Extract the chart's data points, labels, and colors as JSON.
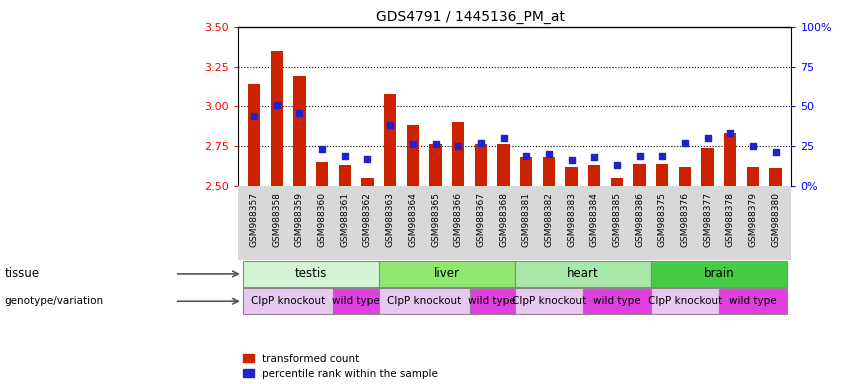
{
  "title": "GDS4791 / 1445136_PM_at",
  "samples": [
    "GSM988357",
    "GSM988358",
    "GSM988359",
    "GSM988360",
    "GSM988361",
    "GSM988362",
    "GSM988363",
    "GSM988364",
    "GSM988365",
    "GSM988366",
    "GSM988367",
    "GSM988368",
    "GSM988381",
    "GSM988382",
    "GSM988383",
    "GSM988384",
    "GSM988385",
    "GSM988386",
    "GSM988375",
    "GSM988376",
    "GSM988377",
    "GSM988378",
    "GSM988379",
    "GSM988380"
  ],
  "red_values": [
    3.14,
    3.35,
    3.19,
    2.65,
    2.63,
    2.55,
    3.08,
    2.88,
    2.76,
    2.9,
    2.76,
    2.76,
    2.68,
    2.68,
    2.62,
    2.63,
    2.55,
    2.64,
    2.64,
    2.62,
    2.74,
    2.83,
    2.62,
    2.61
  ],
  "blue_values": [
    2.94,
    3.01,
    2.96,
    2.73,
    2.69,
    2.67,
    2.88,
    2.76,
    2.76,
    2.75,
    2.77,
    2.8,
    2.69,
    2.7,
    2.66,
    2.68,
    2.63,
    2.69,
    2.69,
    2.77,
    2.8,
    2.83,
    2.75,
    2.71
  ],
  "ylim_left": [
    2.5,
    3.5
  ],
  "ylim_right": [
    0,
    100
  ],
  "yticks_left": [
    2.5,
    2.75,
    3.0,
    3.25,
    3.5
  ],
  "yticks_right": [
    0,
    25,
    50,
    75,
    100
  ],
  "ytick_labels_right": [
    "0%",
    "25",
    "50",
    "75",
    "100%"
  ],
  "hlines": [
    2.75,
    3.0,
    3.25
  ],
  "tissue_groups": [
    {
      "label": "testis",
      "start": 0,
      "end": 6,
      "color": "#d4f5d4"
    },
    {
      "label": "liver",
      "start": 6,
      "end": 12,
      "color": "#90e870"
    },
    {
      "label": "heart",
      "start": 12,
      "end": 18,
      "color": "#a8e8a8"
    },
    {
      "label": "brain",
      "start": 18,
      "end": 24,
      "color": "#44cc44"
    }
  ],
  "genotype_groups": [
    {
      "label": "ClpP knockout",
      "start": 0,
      "end": 4,
      "color": "#e8c8f0"
    },
    {
      "label": "wild type",
      "start": 4,
      "end": 6,
      "color": "#e040e0"
    },
    {
      "label": "ClpP knockout",
      "start": 6,
      "end": 10,
      "color": "#e8c8f0"
    },
    {
      "label": "wild type",
      "start": 10,
      "end": 12,
      "color": "#e040e0"
    },
    {
      "label": "ClpP knockout",
      "start": 12,
      "end": 15,
      "color": "#e8c8f0"
    },
    {
      "label": "wild type",
      "start": 15,
      "end": 18,
      "color": "#e040e0"
    },
    {
      "label": "ClpP knockout",
      "start": 18,
      "end": 21,
      "color": "#e8c8f0"
    },
    {
      "label": "wild type",
      "start": 21,
      "end": 24,
      "color": "#e040e0"
    }
  ],
  "bar_color": "#cc2200",
  "blue_color": "#2222cc",
  "bar_width": 0.55,
  "chart_bg": "#ffffff",
  "xtick_bg": "#d8d8d8",
  "legend_items": [
    "transformed count",
    "percentile rank within the sample"
  ]
}
